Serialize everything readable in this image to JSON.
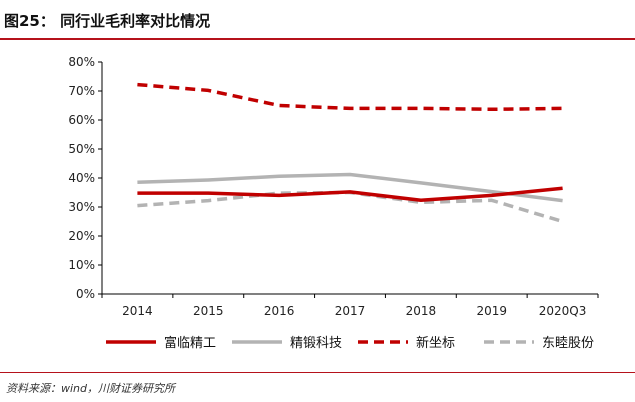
{
  "header": {
    "title": "图25：  同行业毛利率对比情况"
  },
  "footer": {
    "source": "资料来源：wind，川财证券研究所"
  },
  "chart_data": {
    "type": "line",
    "categories": [
      "2014",
      "2015",
      "2016",
      "2017",
      "2018",
      "2019",
      "2020Q3"
    ],
    "ylim": [
      0,
      80
    ],
    "yticks": [
      0,
      10,
      20,
      30,
      40,
      50,
      60,
      70,
      80
    ],
    "yticks_format": "percent",
    "grid": false,
    "legend_position": "bottom",
    "series": [
      {
        "name": "富临精工",
        "values": [
          34.8,
          34.8,
          34.0,
          35.2,
          32.3,
          34.0,
          36.5
        ],
        "color": "#c00000",
        "dash": "solid"
      },
      {
        "name": "精锻科技",
        "values": [
          38.5,
          39.3,
          40.6,
          41.2,
          38.3,
          35.3,
          32.2
        ],
        "color": "#b3b3b3",
        "dash": "solid"
      },
      {
        "name": "新坐标",
        "values": [
          72.2,
          70.2,
          65.0,
          64.0,
          64.0,
          63.7,
          64.0
        ],
        "color": "#c00000",
        "dash": "dashed"
      },
      {
        "name": "东睦股份",
        "values": [
          30.5,
          32.2,
          34.8,
          35.0,
          31.6,
          32.3,
          25.0
        ],
        "color": "#b3b3b3",
        "dash": "dashed"
      }
    ]
  }
}
